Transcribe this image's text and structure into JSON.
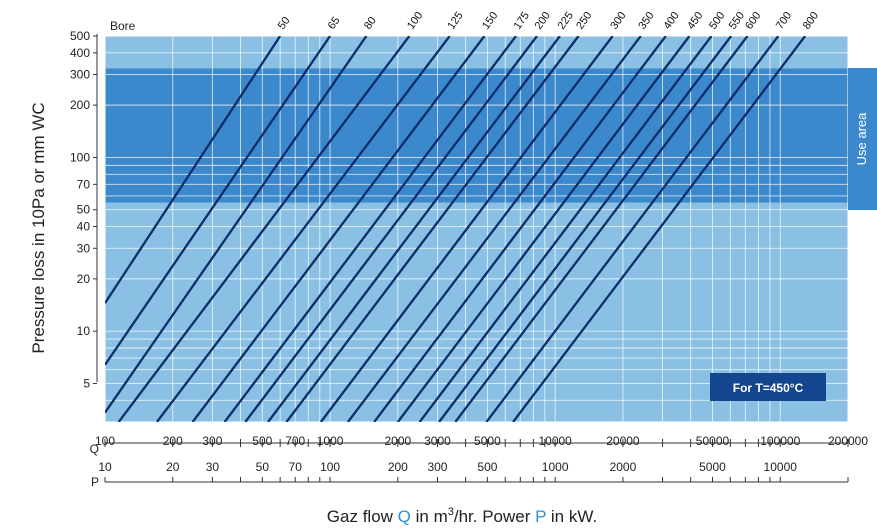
{
  "chart_data": {
    "type": "line",
    "title": "",
    "ylabel": "Pressure loss in 10Pa or mm WC",
    "xlabel_parts": {
      "p1": "Gaz flow ",
      "q": "Q",
      "p2": " in m",
      "sup": "3",
      "p3": "/hr. Power ",
      "p": "P",
      "p4": " in kW."
    },
    "x_axis_q": {
      "name": "Q",
      "scale": "log",
      "range": [
        100,
        200000
      ],
      "tick_labels": [
        "100",
        "200",
        "300",
        "500",
        "700",
        "1000",
        "2000",
        "3000",
        "5000",
        "10000",
        "20000",
        "50000",
        "100000",
        "200000"
      ]
    },
    "x_axis_p": {
      "name": "P",
      "scale": "log",
      "range": [
        10,
        20000
      ],
      "tick_labels": [
        "10",
        "20",
        "30",
        "50",
        "70",
        "100",
        "200",
        "300",
        "500",
        "1000",
        "2000",
        "5000",
        "10000"
      ]
    },
    "y_axis": {
      "scale": "log",
      "range": [
        3,
        500
      ],
      "tick_labels": [
        "5",
        "10",
        "20",
        "30",
        "40",
        "50",
        "70",
        "100",
        "200",
        "300",
        "400",
        "500"
      ]
    },
    "series_title": "Bore",
    "series": [
      {
        "name": "50",
        "x": [
          100,
          600
        ],
        "y": [
          14.5,
          500
        ]
      },
      {
        "name": "65",
        "x": [
          100,
          1000
        ],
        "y": [
          6.4,
          500
        ]
      },
      {
        "name": "80",
        "x": [
          100,
          1450
        ],
        "y": [
          3.4,
          500
        ]
      },
      {
        "name": "100",
        "x": [
          115,
          2250
        ],
        "y": [
          3,
          500
        ]
      },
      {
        "name": "125",
        "x": [
          170,
          3400
        ],
        "y": [
          3,
          500
        ]
      },
      {
        "name": "150",
        "x": [
          245,
          4850
        ],
        "y": [
          3,
          500
        ]
      },
      {
        "name": "175",
        "x": [
          340,
          6700
        ],
        "y": [
          3,
          500
        ]
      },
      {
        "name": "200",
        "x": [
          420,
          8300
        ],
        "y": [
          3,
          500
        ]
      },
      {
        "name": "225",
        "x": [
          530,
          10500
        ],
        "y": [
          3,
          500
        ]
      },
      {
        "name": "250",
        "x": [
          640,
          12700
        ],
        "y": [
          3,
          500
        ]
      },
      {
        "name": "300",
        "x": [
          910,
          18000
        ],
        "y": [
          3,
          500
        ]
      },
      {
        "name": "350",
        "x": [
          1200,
          24000
        ],
        "y": [
          3,
          500
        ]
      },
      {
        "name": "400",
        "x": [
          1570,
          31000
        ],
        "y": [
          3,
          500
        ]
      },
      {
        "name": "450",
        "x": [
          2000,
          39500
        ],
        "y": [
          3,
          500
        ]
      },
      {
        "name": "500",
        "x": [
          2500,
          49500
        ],
        "y": [
          3,
          500
        ]
      },
      {
        "name": "550",
        "x": [
          3050,
          60500
        ],
        "y": [
          3,
          500
        ]
      },
      {
        "name": "600",
        "x": [
          3600,
          71500
        ],
        "y": [
          3,
          500
        ]
      },
      {
        "name": "700",
        "x": [
          4950,
          98000
        ],
        "y": [
          3,
          500
        ]
      },
      {
        "name": "800",
        "x": [
          6500,
          129000
        ],
        "y": [
          3,
          500
        ]
      }
    ],
    "use_area": {
      "label": "Use area",
      "y_range": [
        55,
        325
      ]
    },
    "annotation": "For T=450°C",
    "grid": true,
    "colors": {
      "background": "#89c0e3",
      "use_band": "#3c88cc",
      "grid": "#ffffff",
      "curve": "#0d2e6b",
      "annotation_box": "#14458f",
      "q_accent": "#2c8fd8"
    }
  }
}
